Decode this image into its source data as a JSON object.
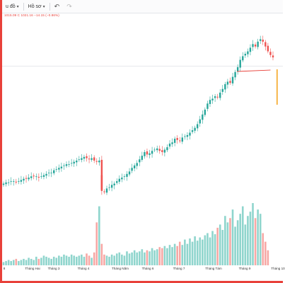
{
  "toolbar": {
    "chart_type_label": "u đồ",
    "interval_label": "Hồ sơ",
    "undo_icon": "undo-icon",
    "redo_icon": "redo-icon"
  },
  "legend": {
    "ohlc_text": "1015.09  C 1021.16  −14.15 (−0.86%)"
  },
  "colors": {
    "up": "#26a69a",
    "down": "#ef5350",
    "up_volume": "#8fd5cd",
    "down_volume": "#f7a8a5",
    "trendline": "#e8413a",
    "marker": "#f5a623",
    "frame": "#e8413a"
  },
  "x_axis": {
    "labels": [
      "8",
      "Tháng Hai",
      "Tháng 3",
      "Tháng 4",
      "Tháng Năm",
      "Tháng 6",
      "Tháng 7",
      "Tháng Tám",
      "Tháng 9",
      "Tháng 10"
    ]
  },
  "chart_data": {
    "type": "candlestick",
    "title": "",
    "xlabel": "",
    "ylabel": "",
    "price_axis_visible": false,
    "grid": false,
    "series": [
      {
        "kind": "price",
        "values": [
          1,
          2,
          2,
          3,
          3,
          2,
          3,
          4,
          5,
          5,
          6,
          7,
          7,
          7,
          6,
          7,
          8,
          9,
          10,
          10,
          12,
          13,
          14,
          15,
          16,
          17,
          17,
          18,
          19,
          20,
          21,
          22,
          23,
          22,
          21,
          22,
          20,
          19,
          20,
          -5,
          -6,
          -3,
          -2,
          0,
          1,
          3,
          5,
          6,
          7,
          9,
          11,
          14,
          16,
          18,
          21,
          24,
          27,
          25,
          26,
          28,
          29,
          30,
          28,
          27,
          29,
          31,
          34,
          35,
          38,
          37,
          36,
          39,
          40,
          41,
          43,
          45,
          47,
          50,
          54,
          58,
          62,
          67,
          70,
          71,
          73,
          72,
          76,
          79,
          83,
          85,
          84,
          89,
          93,
          97,
          103,
          106,
          108,
          110,
          113,
          116,
          114,
          118,
          120,
          118,
          114,
          110,
          107,
          105
        ]
      },
      {
        "kind": "volume",
        "values": [
          3,
          4,
          5,
          4,
          5,
          6,
          4,
          5,
          6,
          5,
          7,
          6,
          5,
          8,
          6,
          7,
          9,
          8,
          7,
          6,
          8,
          7,
          9,
          8,
          10,
          9,
          8,
          10,
          9,
          8,
          9,
          10,
          8,
          11,
          9,
          7,
          12,
          40,
          55,
          20,
          10,
          9,
          8,
          10,
          9,
          11,
          12,
          10,
          9,
          13,
          11,
          12,
          14,
          12,
          13,
          15,
          12,
          14,
          13,
          16,
          14,
          15,
          17,
          16,
          18,
          16,
          19,
          17,
          20,
          18,
          22,
          19,
          24,
          20,
          25,
          22,
          27,
          23,
          26,
          24,
          28,
          30,
          26,
          32,
          29,
          35,
          38,
          33,
          46,
          40,
          44,
          52,
          36,
          42,
          48,
          55,
          38,
          46,
          50,
          58,
          44,
          52,
          48,
          30,
          22,
          14
        ]
      }
    ],
    "annotations": [
      {
        "kind": "trendline",
        "note": "support line under recent peak"
      },
      {
        "kind": "marker",
        "note": "orange vertical bar at last bar"
      }
    ]
  }
}
